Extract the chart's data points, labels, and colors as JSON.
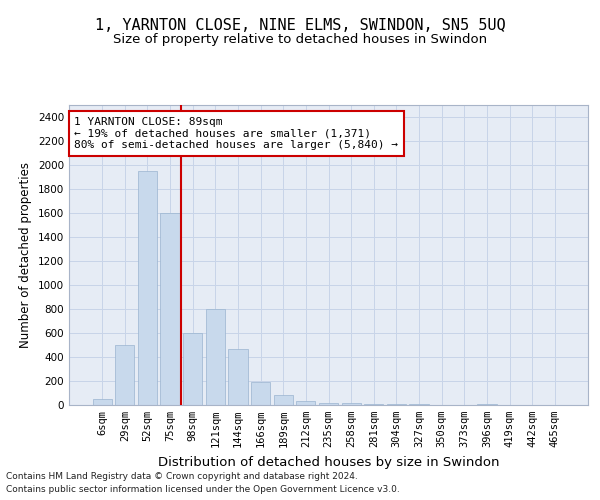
{
  "title": "1, YARNTON CLOSE, NINE ELMS, SWINDON, SN5 5UQ",
  "subtitle": "Size of property relative to detached houses in Swindon",
  "xlabel": "Distribution of detached houses by size in Swindon",
  "ylabel": "Number of detached properties",
  "categories": [
    "6sqm",
    "29sqm",
    "52sqm",
    "75sqm",
    "98sqm",
    "121sqm",
    "144sqm",
    "166sqm",
    "189sqm",
    "212sqm",
    "235sqm",
    "258sqm",
    "281sqm",
    "304sqm",
    "327sqm",
    "350sqm",
    "373sqm",
    "396sqm",
    "419sqm",
    "442sqm",
    "465sqm"
  ],
  "values": [
    50,
    500,
    1950,
    1600,
    600,
    800,
    470,
    195,
    80,
    30,
    20,
    15,
    5,
    5,
    5,
    0,
    0,
    5,
    0,
    0,
    0
  ],
  "bar_color": "#c8d9ec",
  "bar_edge_color": "#9ab4cf",
  "vline_x": 3.5,
  "vline_color": "#cc0000",
  "annotation_text": "1 YARNTON CLOSE: 89sqm\n← 19% of detached houses are smaller (1,371)\n80% of semi-detached houses are larger (5,840) →",
  "annotation_box_color": "#ffffff",
  "annotation_box_edge": "#cc0000",
  "ylim": [
    0,
    2500
  ],
  "yticks": [
    0,
    200,
    400,
    600,
    800,
    1000,
    1200,
    1400,
    1600,
    1800,
    2000,
    2200,
    2400
  ],
  "grid_color": "#c8d4e8",
  "bg_color": "#e6ecf5",
  "footer1": "Contains HM Land Registry data © Crown copyright and database right 2024.",
  "footer2": "Contains public sector information licensed under the Open Government Licence v3.0.",
  "title_fontsize": 11,
  "subtitle_fontsize": 9.5,
  "xlabel_fontsize": 9.5,
  "ylabel_fontsize": 8.5,
  "tick_fontsize": 7.5,
  "annotation_fontsize": 8,
  "footer_fontsize": 6.5
}
